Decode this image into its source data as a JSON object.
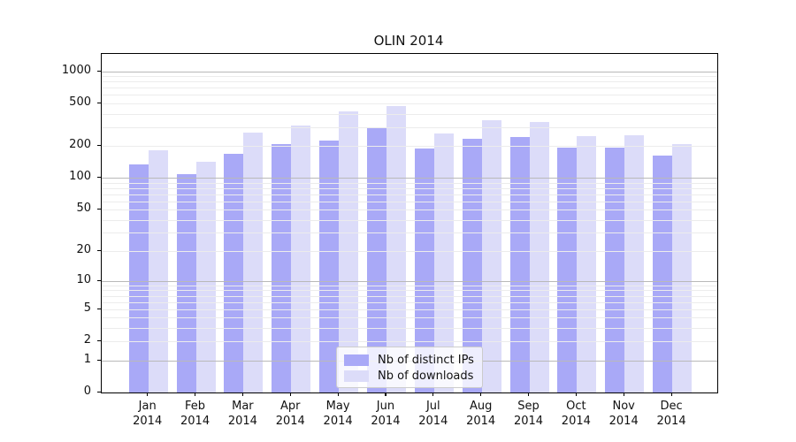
{
  "chart_data": {
    "type": "bar",
    "title": "OLIN 2014",
    "xlabel": "",
    "ylabel": "",
    "year_label": "2014",
    "categories": [
      "Jan",
      "Feb",
      "Mar",
      "Apr",
      "May",
      "Jun",
      "Jul",
      "Aug",
      "Sep",
      "Oct",
      "Nov",
      "Dec"
    ],
    "series": [
      {
        "name": "Nb of distinct IPs",
        "color": "#a9a9f7",
        "values": [
          134,
          109,
          168,
          207,
          223,
          298,
          188,
          233,
          243,
          194,
          194,
          163
        ]
      },
      {
        "name": "Nb of downloads",
        "color": "#dcdcf9",
        "values": [
          181,
          143,
          265,
          310,
          421,
          472,
          262,
          348,
          337,
          246,
          253,
          209
        ]
      }
    ],
    "yticks": [
      0,
      1,
      2,
      5,
      10,
      20,
      50,
      100,
      200,
      500,
      1000
    ],
    "ylim": [
      0,
      1450
    ],
    "yscale": "log10(value+1)",
    "grid": true,
    "legend_position": "lower center"
  }
}
